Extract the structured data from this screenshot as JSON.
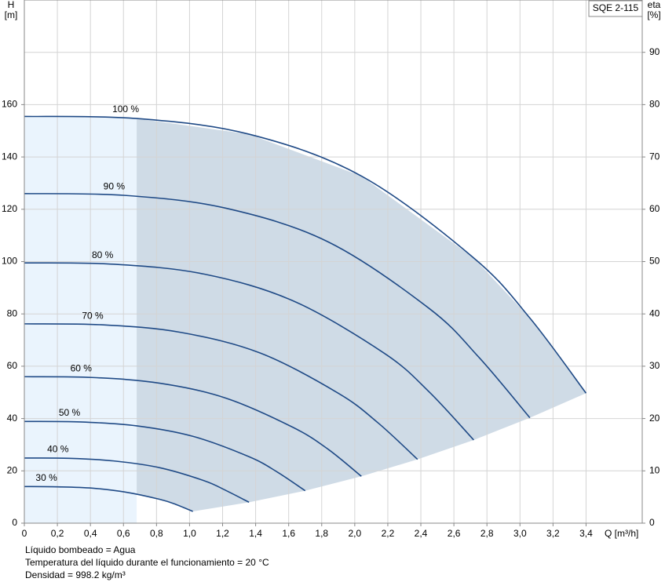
{
  "chart_data": {
    "type": "line",
    "annotation": "SQE 2-115",
    "y_label": [
      "H",
      "[m]"
    ],
    "y2_label": [
      "eta",
      "[%]"
    ],
    "x_label": "Q [m³/h]",
    "notes": [
      "Líquido bombeado = Agua",
      "Temperatura del líquido durante el funcionamiento = 20 °C",
      "Densidad = 998.2 kg/m³"
    ],
    "xlim": [
      0,
      3.74
    ],
    "ylim": [
      0,
      200
    ],
    "y2lim": [
      0,
      100
    ],
    "xticks": [
      0,
      {
        "value": 0.2,
        "label": "0,2"
      },
      {
        "value": 0.4,
        "label": "0,4"
      },
      {
        "value": 0.6,
        "label": "0,6"
      },
      {
        "value": 0.8,
        "label": "0,8"
      },
      {
        "value": 1.0,
        "label": "1,0"
      },
      {
        "value": 1.2,
        "label": "1,2"
      },
      {
        "value": 1.4,
        "label": "1,4"
      },
      {
        "value": 1.6,
        "label": "1,6"
      },
      {
        "value": 1.8,
        "label": "1,8"
      },
      {
        "value": 2.0,
        "label": "2,0"
      },
      {
        "value": 2.2,
        "label": "2,2"
      },
      {
        "value": 2.4,
        "label": "2,4"
      },
      {
        "value": 2.6,
        "label": "2,6"
      },
      {
        "value": 2.8,
        "label": "2,8"
      },
      {
        "value": 3.0,
        "label": "3,0"
      },
      {
        "value": 3.2,
        "label": "3,2"
      },
      {
        "value": 3.4,
        "label": "3,4"
      }
    ],
    "yticks": [
      0,
      20,
      40,
      60,
      80,
      100,
      120,
      140,
      160
    ],
    "y2ticks": [
      0,
      10,
      20,
      30,
      40,
      50,
      60,
      70,
      80,
      90
    ],
    "grid": true,
    "color": "#1f4a86",
    "series": [
      {
        "name": "100 %",
        "x": [
          0,
          0.68,
          1.36,
          2.04,
          2.72,
          3.06,
          3.4
        ],
        "values": [
          155.5,
          154.7,
          148.7,
          132.7,
          101.4,
          78.4,
          49.7
        ]
      },
      {
        "name": "90 %",
        "x": [
          0,
          0.61,
          1.22,
          1.84,
          2.45,
          2.75,
          3.06
        ],
        "values": [
          126.0,
          125.3,
          120.4,
          107.5,
          82.1,
          63.5,
          40.3
        ]
      },
      {
        "name": "80 %",
        "x": [
          0,
          0.54,
          1.09,
          1.63,
          2.18,
          2.45,
          2.72
        ],
        "values": [
          99.5,
          99.0,
          95.2,
          84.9,
          64.9,
          50.2,
          31.8
        ]
      },
      {
        "name": "70 %",
        "x": [
          0,
          0.48,
          0.95,
          1.43,
          1.9,
          2.14,
          2.38
        ],
        "values": [
          76.2,
          75.8,
          72.9,
          65.0,
          49.7,
          38.4,
          24.4
        ]
      },
      {
        "name": "60 %",
        "x": [
          0,
          0.41,
          0.82,
          1.22,
          1.63,
          1.84,
          2.04
        ],
        "values": [
          56.0,
          55.7,
          53.5,
          47.8,
          36.5,
          28.2,
          17.9
        ]
      },
      {
        "name": "50 %",
        "x": [
          0,
          0.34,
          0.68,
          1.02,
          1.36,
          1.53,
          1.7
        ],
        "values": [
          38.9,
          38.7,
          37.2,
          33.2,
          25.4,
          19.6,
          12.4
        ]
      },
      {
        "name": "40 %",
        "x": [
          0,
          0.27,
          0.54,
          0.82,
          1.09,
          1.22,
          1.36
        ],
        "values": [
          24.9,
          24.8,
          23.8,
          21.2,
          16.2,
          12.5,
          8.0
        ]
      },
      {
        "name": "30 %",
        "x": [
          0,
          0.2,
          0.41,
          0.61,
          0.82,
          0.92,
          1.02
        ],
        "values": [
          14.0,
          13.9,
          13.4,
          11.9,
          9.1,
          7.1,
          4.5
        ]
      }
    ]
  }
}
